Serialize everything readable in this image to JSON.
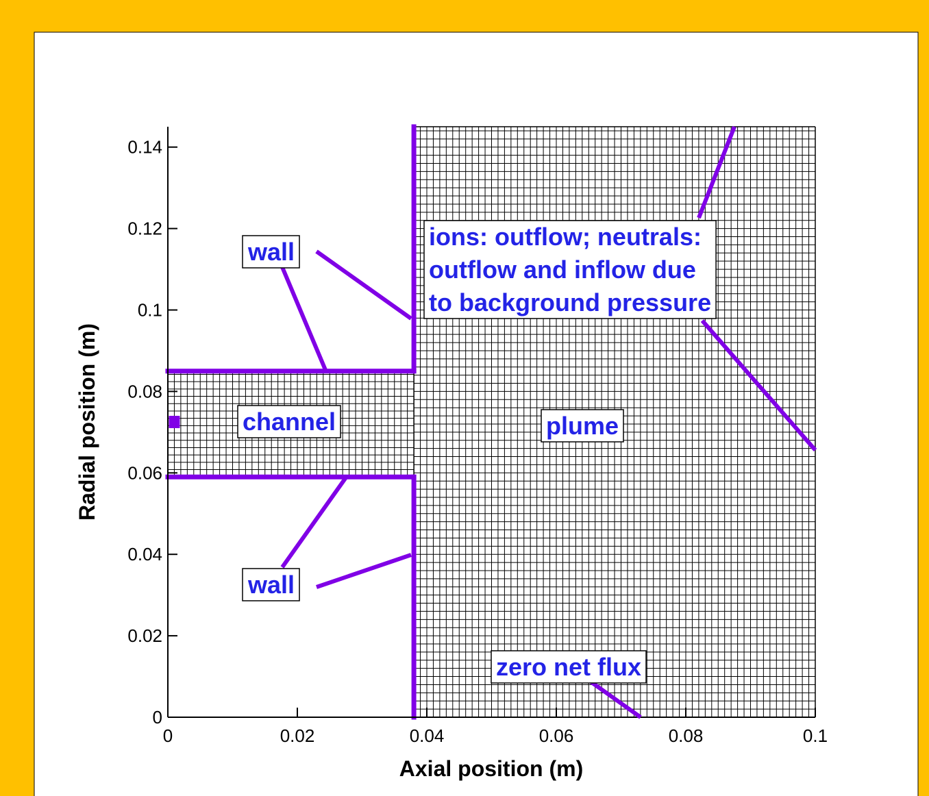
{
  "chart_data": {
    "type": "mesh",
    "xlabel": "Axial position (m)",
    "ylabel": "Radial position (m)",
    "xlim": [
      0,
      0.1
    ],
    "ylim": [
      0,
      0.145
    ],
    "xticks": [
      0,
      0.02,
      0.04,
      0.06,
      0.08,
      0.1
    ],
    "yticks": [
      0,
      0.02,
      0.04,
      0.06,
      0.08,
      0.1,
      0.12,
      0.14
    ],
    "mesh_color": "#000000",
    "wall_color": "#8000e6",
    "mesh": [
      {
        "x": [
          0,
          0.038
        ],
        "y": [
          0.059,
          0.085
        ],
        "dx": 0.001,
        "dy": 0.0018
      },
      {
        "x": [
          0.038,
          0.1
        ],
        "y": [
          0,
          0.145
        ],
        "dx": 0.001,
        "dy": 0.002
      }
    ],
    "walls": [
      {
        "x": [
          0,
          0.038
        ],
        "y": [
          0.085,
          0.085
        ]
      },
      {
        "x": [
          0.038,
          0.038
        ],
        "y": [
          0.085,
          0.145
        ]
      },
      {
        "x": [
          0,
          0.038
        ],
        "y": [
          0.059,
          0.059
        ]
      },
      {
        "x": [
          0.038,
          0.038
        ],
        "y": [
          0,
          0.059
        ]
      }
    ],
    "anode": {
      "x": 0.001,
      "y": 0.0725
    },
    "annotations": [
      {
        "lines": [
          "wall"
        ]
      },
      {
        "lines": [
          "ions: outflow; neutrals:",
          "outflow and inflow due",
          "to background pressure"
        ]
      },
      {
        "lines": [
          "channel"
        ]
      },
      {
        "lines": [
          "plume"
        ]
      },
      {
        "lines": [
          "wall"
        ]
      },
      {
        "lines": [
          "zero net flux"
        ]
      }
    ]
  }
}
